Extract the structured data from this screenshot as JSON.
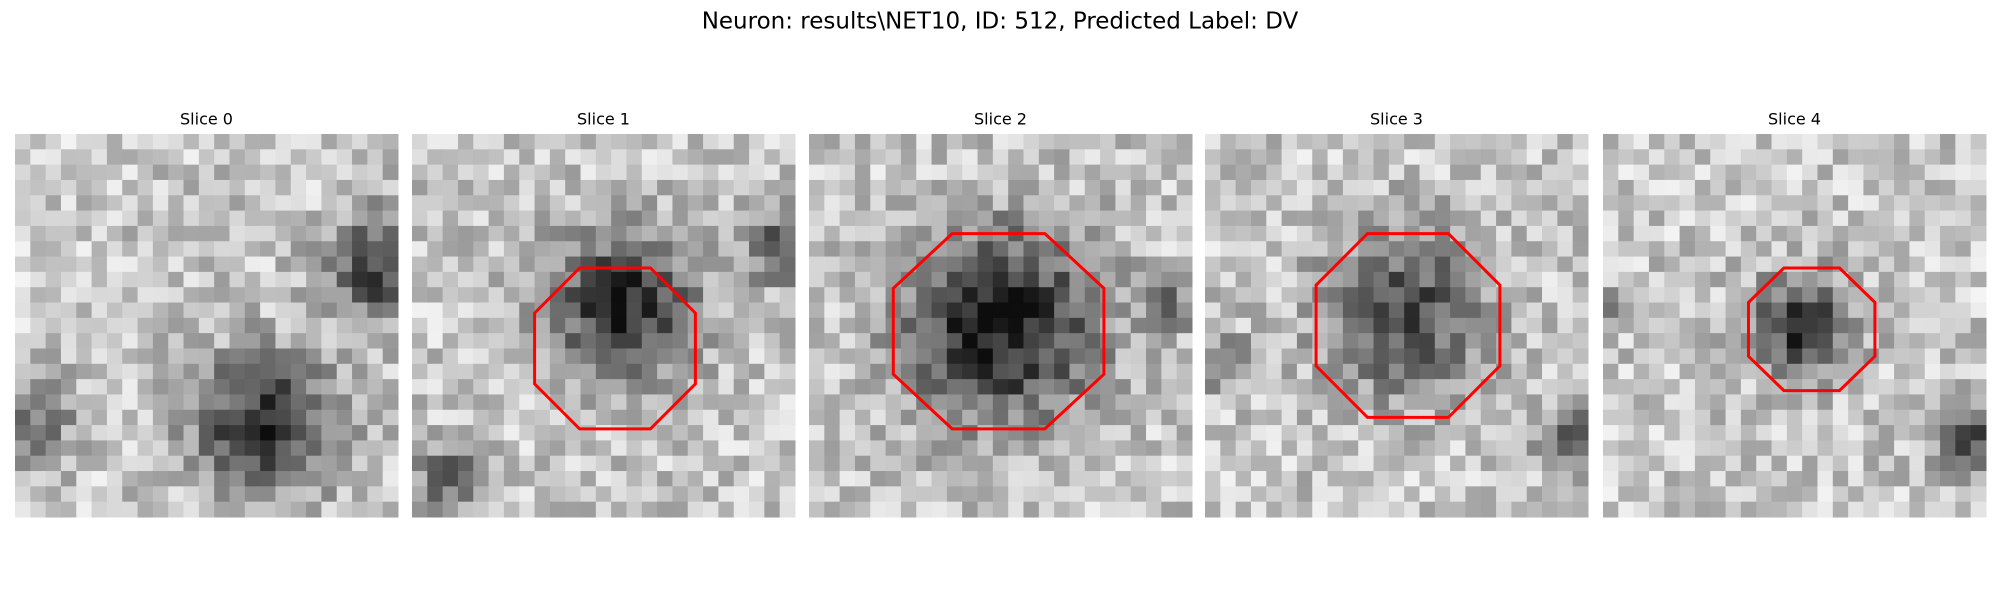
{
  "title": "Neuron: results\\NET10, ID: 512, Predicted Label: DV",
  "panels": [
    {
      "title": "Slice 0"
    },
    {
      "title": "Slice 1"
    },
    {
      "title": "Slice 2"
    },
    {
      "title": "Slice 3"
    },
    {
      "title": "Slice 4"
    }
  ]
}
